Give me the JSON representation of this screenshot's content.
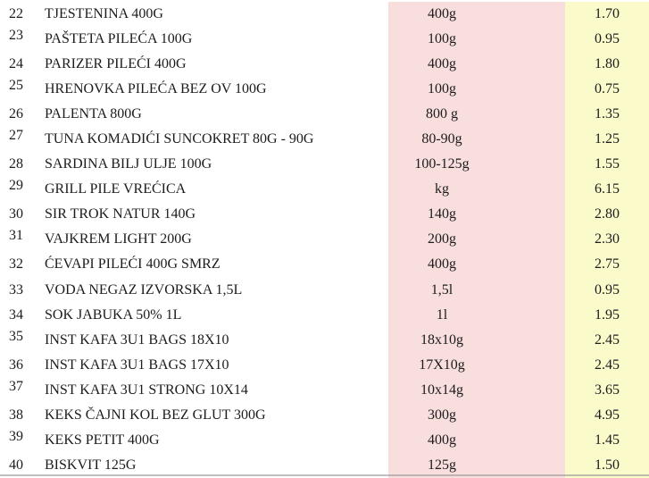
{
  "colors": {
    "weight_column_bg": "#F9DEDE",
    "price_column_bg": "#FAFACA",
    "text": "#1c1c1c"
  },
  "table": {
    "columns": [
      "row_number",
      "product_name",
      "weight",
      "price"
    ],
    "rows": [
      {
        "num": "22",
        "name": "TJESTENINA 400G",
        "weight": "400g",
        "price": "1.70",
        "raised": false
      },
      {
        "num": "23",
        "name": "PAŠTETA PILEĆA 100G",
        "weight": "100g",
        "price": "0.95",
        "raised": true
      },
      {
        "num": "24",
        "name": "PARIZER PILEĆI 400G",
        "weight": "400g",
        "price": "1.80",
        "raised": false
      },
      {
        "num": "25",
        "name": "HRENOVKA PILEĆA BEZ OV 100G",
        "weight": "100g",
        "price": "0.75",
        "raised": true
      },
      {
        "num": "26",
        "name": "PALENTA 800G",
        "weight": "800 g",
        "price": "1.35",
        "raised": false
      },
      {
        "num": "27",
        "name": "TUNA KOMADIĆI SUNCOKRET 80G - 90G",
        "weight": "80-90g",
        "price": "1.25",
        "raised": true
      },
      {
        "num": "28",
        "name": "SARDINA BILJ ULJE 100G",
        "weight": "100-125g",
        "price": "1.55",
        "raised": false
      },
      {
        "num": "29",
        "name": "GRILL PILE VREĆICA",
        "weight": "kg",
        "price": "6.15",
        "raised": true
      },
      {
        "num": "30",
        "name": "SIR TROK NATUR 140G",
        "weight": "140g",
        "price": "2.80",
        "raised": false
      },
      {
        "num": "31",
        "name": "VAJKREM LIGHT 200G",
        "weight": "200g",
        "price": "2.30",
        "raised": true
      },
      {
        "num": "32",
        "name": "ĆEVAPI PILEĆI 400G SMRZ",
        "weight": "400g",
        "price": "2.75",
        "raised": false
      },
      {
        "num": "33",
        "name": "VODA NEGAZ IZVORSKA 1,5L",
        "weight": "1,5l",
        "price": "0.95",
        "raised": false
      },
      {
        "num": "34",
        "name": "SOK JABUKA 50% 1L",
        "weight": "1l",
        "price": "1.95",
        "raised": false
      },
      {
        "num": "35",
        "name": "INST KAFA 3U1 BAGS 18X10",
        "weight": "18x10g",
        "price": "2.45",
        "raised": true
      },
      {
        "num": "36",
        "name": "INST KAFA 3U1 BAGS 17X10",
        "weight": "17X10g",
        "price": "2.45",
        "raised": false
      },
      {
        "num": "37",
        "name": "INST KAFA 3U1 STRONG 10X14",
        "weight": "10x14g",
        "price": "3.65",
        "raised": true
      },
      {
        "num": "38",
        "name": "KEKS ČAJNI KOL BEZ GLUT 300G",
        "weight": "300g",
        "price": "4.95",
        "raised": false
      },
      {
        "num": "39",
        "name": "KEKS PETIT 400G",
        "weight": "400g",
        "price": "1.45",
        "raised": true
      },
      {
        "num": "40",
        "name": "BISKVIT 125G",
        "weight": "125g",
        "price": "1.50",
        "raised": false
      }
    ]
  }
}
